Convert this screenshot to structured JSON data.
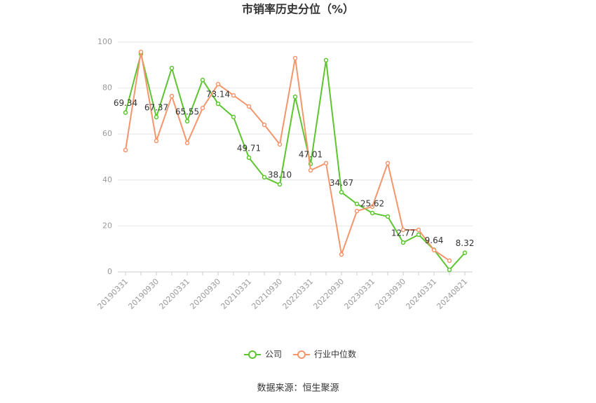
{
  "chart_data": {
    "type": "line",
    "title": "市销率历史分位（%）",
    "categories": [
      "20190331",
      null,
      "20190930",
      null,
      "20200331",
      null,
      "20200930",
      null,
      "20210331",
      null,
      "20210930",
      null,
      "20220331",
      null,
      "20220930",
      null,
      "20230331",
      null,
      "20230930",
      null,
      "20240331",
      null,
      "20240821"
    ],
    "series": [
      {
        "name": "公司",
        "color": "#5cc52f",
        "values": [
          69.34,
          94.8,
          67.37,
          88.7,
          65.55,
          83.5,
          73.14,
          67.4,
          49.71,
          41.2,
          38.1,
          76.2,
          47.01,
          92.1,
          34.67,
          29.6,
          25.62,
          24.1,
          12.77,
          16.2,
          9.64,
          0.9,
          8.32
        ],
        "value_labels": [
          "69.34",
          null,
          "67.37",
          null,
          "65.55",
          null,
          "73.14",
          null,
          "49.71",
          null,
          "38.10",
          null,
          "47.01",
          null,
          "34.67",
          null,
          "25.62",
          null,
          "12.77",
          null,
          "9.64",
          null,
          "8.32"
        ]
      },
      {
        "name": "行业中位数",
        "color": "#f5956c",
        "values": [
          53.0,
          95.7,
          57.0,
          76.5,
          56.1,
          71.3,
          81.7,
          76.8,
          72.0,
          64.0,
          55.5,
          93.0,
          44.2,
          47.3,
          7.6,
          26.5,
          28.4,
          47.3,
          18.3,
          18.3,
          9.5,
          4.9,
          null
        ]
      }
    ],
    "ylim": [
      0,
      100
    ],
    "yticks": [
      0,
      20,
      40,
      60,
      80,
      100
    ],
    "grid": true,
    "source": "数据来源：恒生聚源"
  }
}
